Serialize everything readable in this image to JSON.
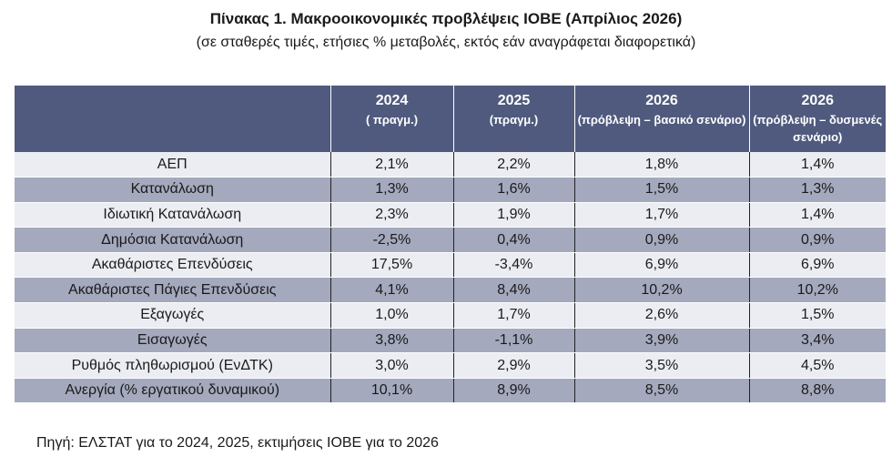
{
  "title": "Πίνακας 1. Μακροοικονομικές προβλέψεις ΙΟΒΕ (Απρίλιος 2026)",
  "subtitle": "(σε σταθερές τιμές, ετήσιες % μεταβολές, εκτός εάν αναγράφεται διαφορετικά)",
  "table": {
    "columns": [
      {
        "year": "",
        "sub": ""
      },
      {
        "year": "2024",
        "sub": "( πραγμ.)"
      },
      {
        "year": "2025",
        "sub": "(πραγμ.)"
      },
      {
        "year": "2026",
        "sub": "(πρόβλεψη – βασικό σενάριο)"
      },
      {
        "year": "2026",
        "sub": "(πρόβλεψη – δυσμενές σενάριο)"
      }
    ],
    "rows": [
      {
        "label": "ΑΕΠ",
        "values": [
          "2,1%",
          "2,2%",
          "1,8%",
          "1,4%"
        ]
      },
      {
        "label": "Κατανάλωση",
        "values": [
          "1,3%",
          "1,6%",
          "1,5%",
          "1,3%"
        ]
      },
      {
        "label": "Ιδιωτική Κατανάλωση",
        "values": [
          "2,3%",
          "1,9%",
          "1,7%",
          "1,4%"
        ]
      },
      {
        "label": "Δημόσια Κατανάλωση",
        "values": [
          "-2,5%",
          "0,4%",
          "0,9%",
          "0,9%"
        ]
      },
      {
        "label": "Ακαθάριστες Επενδύσεις",
        "values": [
          "17,5%",
          "-3,4%",
          "6,9%",
          "6,9%"
        ]
      },
      {
        "label": "Ακαθάριστες Πάγιες Επενδύσεις",
        "values": [
          "4,1%",
          "8,4%",
          "10,2%",
          "10,2%"
        ]
      },
      {
        "label": "Εξαγωγές",
        "values": [
          "1,0%",
          "1,7%",
          "2,6%",
          "1,5%"
        ]
      },
      {
        "label": "Εισαγωγές",
        "values": [
          "3,8%",
          "-1,1%",
          "3,9%",
          "3,4%"
        ]
      },
      {
        "label": "Ρυθμός πληθωρισμού (ΕνΔΤΚ)",
        "values": [
          "3,0%",
          "2,9%",
          "3,5%",
          "4,5%"
        ]
      },
      {
        "label": "Ανεργία (% εργατικού δυναμικού)",
        "values": [
          "10,1%",
          "8,9%",
          "8,5%",
          "8,8%"
        ]
      }
    ]
  },
  "source": "Πηγή: ΕΛΣΤΑΤ για το 2024, 2025, εκτιμήσεις ΙΟΒΕ για το 2026"
}
